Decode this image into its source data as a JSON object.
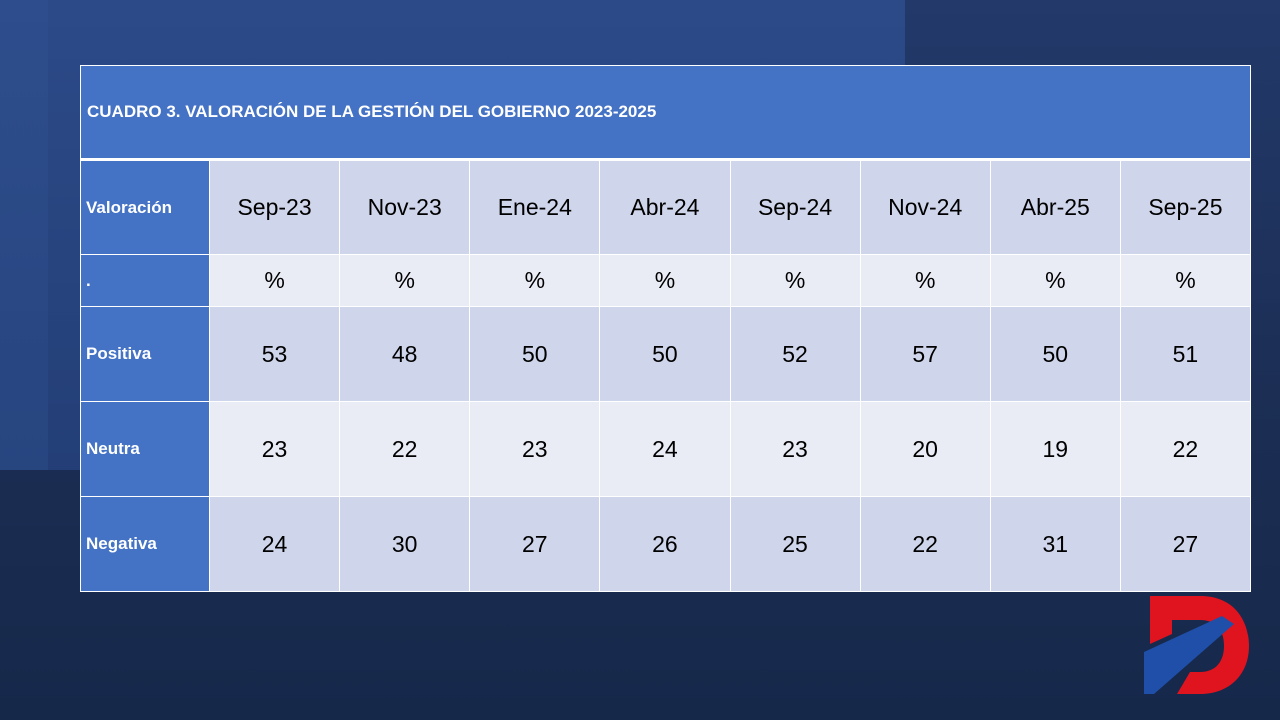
{
  "table": {
    "title": "CUADRO 3. VALORACIÓN DE LA GESTIÓN DEL GOBIERNO 2023-2025",
    "header": [
      "Valoración",
      "Sep-23",
      "Nov-23",
      "Ene-24",
      "Abr-24",
      "Sep-24",
      "Nov-24",
      "Abr-25",
      "Sep-25"
    ],
    "units": [
      ".",
      "%",
      "%",
      "%",
      "%",
      "%",
      "%",
      "%",
      "%"
    ],
    "rows": [
      [
        "Positiva",
        53,
        48,
        50,
        50,
        52,
        57,
        50,
        51
      ],
      [
        "Neutra",
        23,
        22,
        23,
        24,
        23,
        20,
        19,
        22
      ],
      [
        "Negativa",
        24,
        30,
        27,
        26,
        25,
        22,
        31,
        27
      ]
    ]
  }
}
